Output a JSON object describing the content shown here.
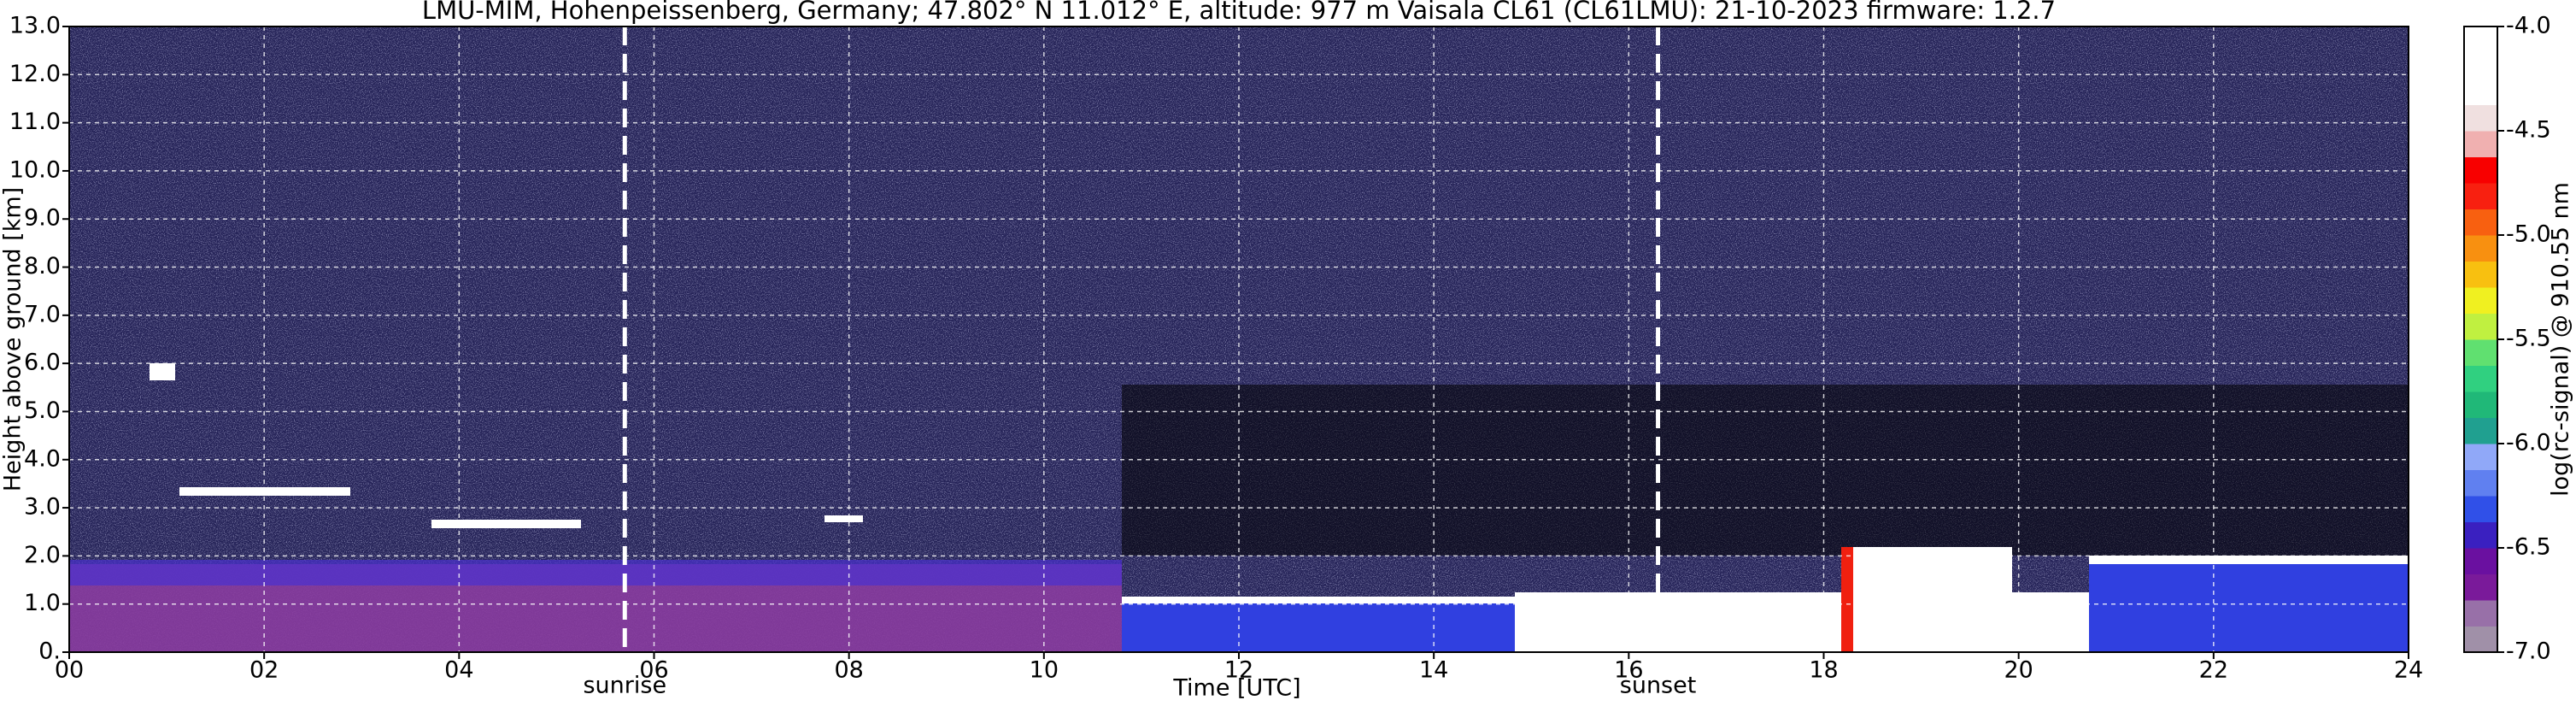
{
  "chart_data": {
    "type": "heatmap",
    "title": "LMU-MIM, Hohenpeissenberg, Germany; 47.802° N 11.012° E, altitude: 977 m    Vaisala CL61 (CL61LMU): 21-10-2023    firmware: 1.2.7",
    "xlabel": "Time [UTC]",
    "ylabel": "Height above ground [km]",
    "xlim": [
      0,
      24
    ],
    "xticks": [
      {
        "value": 0,
        "label": "00"
      },
      {
        "value": 2,
        "label": "02"
      },
      {
        "value": 4,
        "label": "04"
      },
      {
        "value": 6,
        "label": "06"
      },
      {
        "value": 8,
        "label": "08"
      },
      10,
      12,
      14,
      16,
      18,
      20,
      22,
      24
    ],
    "ylim": [
      0,
      13
    ],
    "yticks": [
      {
        "value": 0,
        "label": "0."
      },
      {
        "value": 1,
        "label": "1.0"
      },
      {
        "value": 2,
        "label": "2.0"
      },
      {
        "value": 3,
        "label": "3.0"
      },
      {
        "value": 4,
        "label": "4.0"
      },
      {
        "value": 5,
        "label": "5.0"
      },
      {
        "value": 6,
        "label": "6.0"
      },
      {
        "value": 7,
        "label": "7.0"
      },
      {
        "value": 8,
        "label": "8.0"
      },
      {
        "value": 9,
        "label": "9.0"
      },
      {
        "value": 10,
        "label": "10.0"
      },
      {
        "value": 11,
        "label": "11.0"
      },
      {
        "value": 12,
        "label": "12.0"
      },
      {
        "value": 13,
        "label": "13.0"
      }
    ],
    "grid": true,
    "annotations": [
      {
        "text": "sunrise",
        "x": 5.7
      },
      {
        "text": "sunset",
        "x": 16.3
      }
    ],
    "colorbar": {
      "label": "log(rc-signal) @ 910.55 nm",
      "lim": [
        -7,
        -4
      ],
      "ticks": [
        {
          "value": -4,
          "label": "-4.0"
        },
        {
          "value": -4.5,
          "label": "-4.5"
        },
        {
          "value": -5,
          "label": "-5.0"
        },
        {
          "value": -5.5,
          "label": "-5.5"
        },
        {
          "value": -6,
          "label": "-6.0"
        },
        {
          "value": -6.5,
          "label": "-6.5"
        },
        {
          "value": -7,
          "label": "-7.0"
        }
      ],
      "colors": [
        "#a090a8",
        "#9870a8",
        "#7a1a9a",
        "#6a10a0",
        "#3a20c0",
        "#3050e8",
        "#6080f0",
        "#90a8f8",
        "#20a090",
        "#20b878",
        "#30d080",
        "#60e070",
        "#c0f040",
        "#f0f020",
        "#f8c010",
        "#f89010",
        "#f86010",
        "#f82010",
        "#f80000",
        "#f0b0b0",
        "#f0e0e0",
        "#ffffff",
        "#ffffff",
        "#ffffff"
      ]
    }
  }
}
